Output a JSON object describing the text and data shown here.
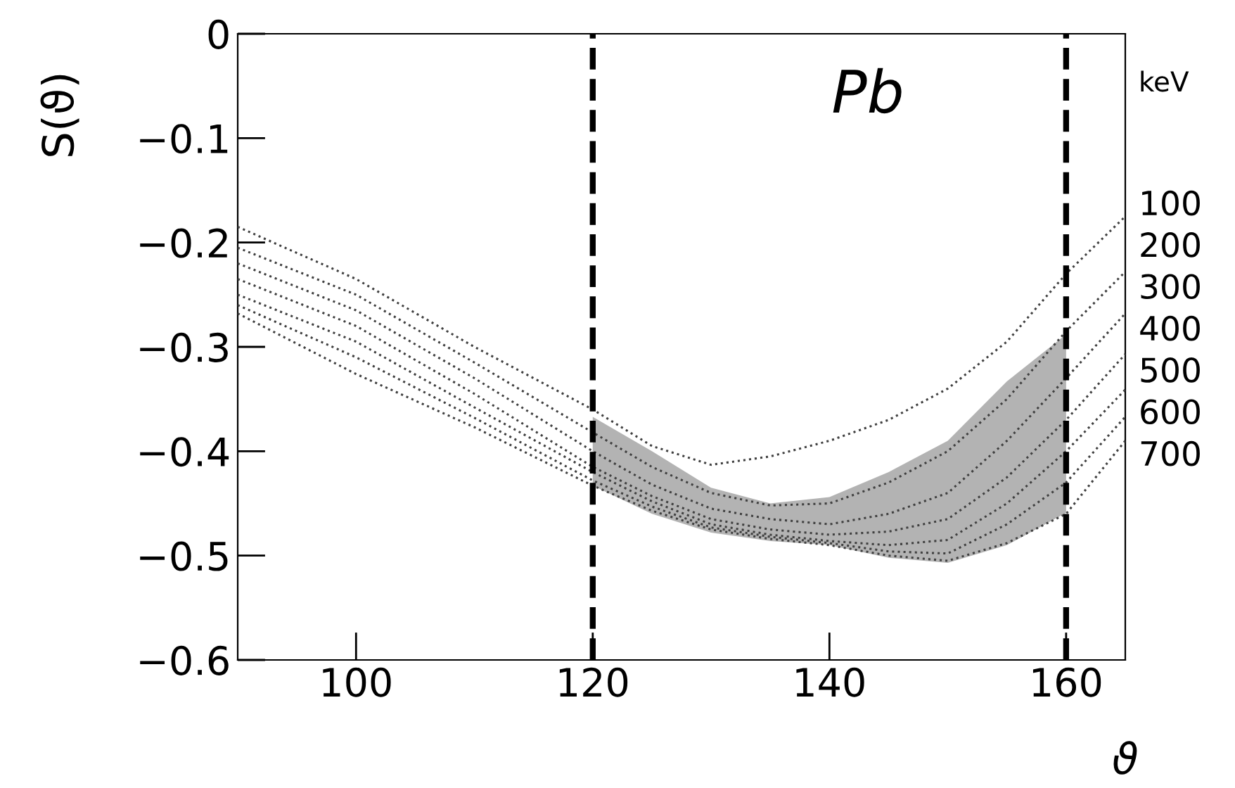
{
  "chart_data": {
    "type": "line",
    "title": null,
    "xlabel": "ϑ",
    "ylabel": "S(ϑ)",
    "legend_title": "keV",
    "annotations": [
      "Pb"
    ],
    "x": [
      90,
      100,
      110,
      120,
      125,
      130,
      135,
      140,
      145,
      150,
      155,
      160,
      165
    ],
    "series": [
      {
        "name": "100",
        "color": "#404040",
        "values": [
          -0.185,
          -0.235,
          -0.3,
          -0.36,
          -0.395,
          -0.413,
          -0.405,
          -0.39,
          -0.37,
          -0.34,
          -0.295,
          -0.23,
          -0.175
        ]
      },
      {
        "name": "200",
        "color": "#404040",
        "values": [
          -0.205,
          -0.25,
          -0.315,
          -0.382,
          -0.415,
          -0.44,
          -0.452,
          -0.45,
          -0.43,
          -0.4,
          -0.35,
          -0.285,
          -0.228
        ]
      },
      {
        "name": "300",
        "color": "#404040",
        "values": [
          -0.22,
          -0.265,
          -0.33,
          -0.4,
          -0.432,
          -0.455,
          -0.465,
          -0.47,
          -0.46,
          -0.44,
          -0.39,
          -0.33,
          -0.268
        ]
      },
      {
        "name": "400",
        "color": "#404040",
        "values": [
          -0.235,
          -0.28,
          -0.345,
          -0.415,
          -0.443,
          -0.465,
          -0.475,
          -0.48,
          -0.477,
          -0.465,
          -0.425,
          -0.37,
          -0.307
        ]
      },
      {
        "name": "500",
        "color": "#404040",
        "values": [
          -0.25,
          -0.295,
          -0.358,
          -0.42,
          -0.448,
          -0.47,
          -0.48,
          -0.486,
          -0.49,
          -0.485,
          -0.45,
          -0.4,
          -0.341
        ]
      },
      {
        "name": "600",
        "color": "#404040",
        "values": [
          -0.26,
          -0.31,
          -0.368,
          -0.428,
          -0.453,
          -0.473,
          -0.482,
          -0.488,
          -0.496,
          -0.498,
          -0.47,
          -0.43,
          -0.367
        ]
      },
      {
        "name": "700",
        "color": "#404040",
        "values": [
          -0.268,
          -0.326,
          -0.377,
          -0.433,
          -0.457,
          -0.475,
          -0.484,
          -0.49,
          -0.5,
          -0.505,
          -0.488,
          -0.46,
          -0.39
        ],
        "lower": [
          null,
          null,
          null,
          -0.433,
          -0.46,
          -0.478,
          -0.486,
          -0.49,
          -0.502,
          -0.507,
          -0.49,
          -0.459,
          null
        ],
        "upper": [
          null,
          null,
          null,
          -0.367,
          -0.4,
          -0.435,
          -0.45,
          -0.444,
          -0.42,
          -0.39,
          -0.333,
          -0.288,
          null
        ]
      }
    ],
    "line_style": "dotted",
    "marker": "none",
    "grid": false,
    "legend": false,
    "ref_lines": [
      {
        "axis": "x",
        "value": 120,
        "line_style": "dashed",
        "color": "#000000"
      },
      {
        "axis": "x",
        "value": 160,
        "line_style": "dashed",
        "color": "#000000"
      }
    ],
    "xlim": [
      90,
      165
    ],
    "xticks": [
      100,
      120,
      140,
      160
    ],
    "ylim": [
      -0.6,
      0
    ],
    "yticks": [
      {
        "value": -0.6,
        "label": "−0.6"
      },
      {
        "value": -0.5,
        "label": "−0.5"
      },
      {
        "value": -0.4,
        "label": "−0.4"
      },
      {
        "value": -0.3,
        "label": "−0.3"
      },
      {
        "value": -0.2,
        "label": "−0.2"
      },
      {
        "value": -0.1,
        "label": "−0.1"
      },
      0
    ]
  }
}
